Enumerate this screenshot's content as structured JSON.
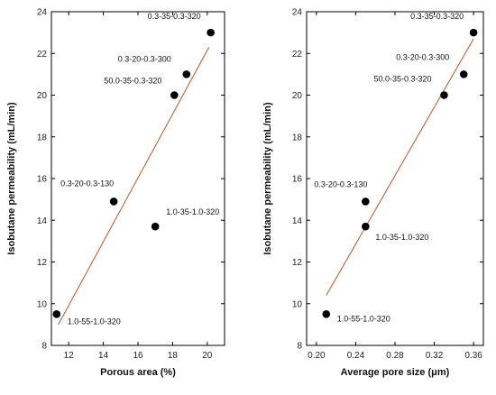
{
  "chart_data": [
    {
      "type": "scatter",
      "xlabel": "Porous area (%)",
      "ylabel": "Isobutane permeability (mL/min)",
      "xlim": [
        11,
        21
      ],
      "ylim": [
        8,
        24
      ],
      "xticks": [
        12,
        14,
        16,
        18,
        20
      ],
      "yticks": [
        8,
        10,
        12,
        14,
        16,
        18,
        20,
        22,
        24
      ],
      "points": [
        {
          "x": 11.3,
          "y": 9.5,
          "label": "1.0-55-1.0-320"
        },
        {
          "x": 14.6,
          "y": 14.9,
          "label": "0.3-20-0.3-130"
        },
        {
          "x": 17.0,
          "y": 13.7,
          "label": "1.0-35-1.0-320"
        },
        {
          "x": 18.1,
          "y": 20.0,
          "label": "50.0-35-0.3-320"
        },
        {
          "x": 18.8,
          "y": 21.0,
          "label": "0.3-20-0.3-300"
        },
        {
          "x": 20.2,
          "y": 23.0,
          "label": "0.3-35-0.3-320"
        }
      ],
      "fit_line": {
        "x": [
          11.4,
          20.1
        ],
        "y": [
          9.0,
          22.3
        ]
      },
      "fit_color": "#b5643c",
      "grid": false,
      "legend": "none"
    },
    {
      "type": "scatter",
      "xlabel": "Average pore size (μm)",
      "ylabel": "Isobutane permeability (mL/min)",
      "xlim": [
        0.19,
        0.37
      ],
      "ylim": [
        8,
        24
      ],
      "xticks": [
        0.2,
        0.24,
        0.28,
        0.32,
        0.36
      ],
      "xtick_labels": [
        "0.20",
        "0.24",
        "0.28",
        "0.32",
        "0.36"
      ],
      "yticks": [
        8,
        10,
        12,
        14,
        16,
        18,
        20,
        22,
        24
      ],
      "points": [
        {
          "x": 0.21,
          "y": 9.5,
          "label": "1.0-55-1.0-320"
        },
        {
          "x": 0.25,
          "y": 14.9,
          "label": "0.3-20-0.3-130"
        },
        {
          "x": 0.25,
          "y": 13.7,
          "label": "1.0-35-1.0-320"
        },
        {
          "x": 0.33,
          "y": 20.0,
          "label": "50.0-35-0.3-320"
        },
        {
          "x": 0.35,
          "y": 21.0,
          "label": "0.3-20-0.3-300"
        },
        {
          "x": 0.36,
          "y": 23.0,
          "label": "0.3-35-0.3-320"
        }
      ],
      "fit_line": {
        "x": [
          0.21,
          0.36
        ],
        "y": [
          10.4,
          22.7
        ]
      },
      "fit_color": "#b5643c",
      "grid": false,
      "legend": "none"
    }
  ]
}
